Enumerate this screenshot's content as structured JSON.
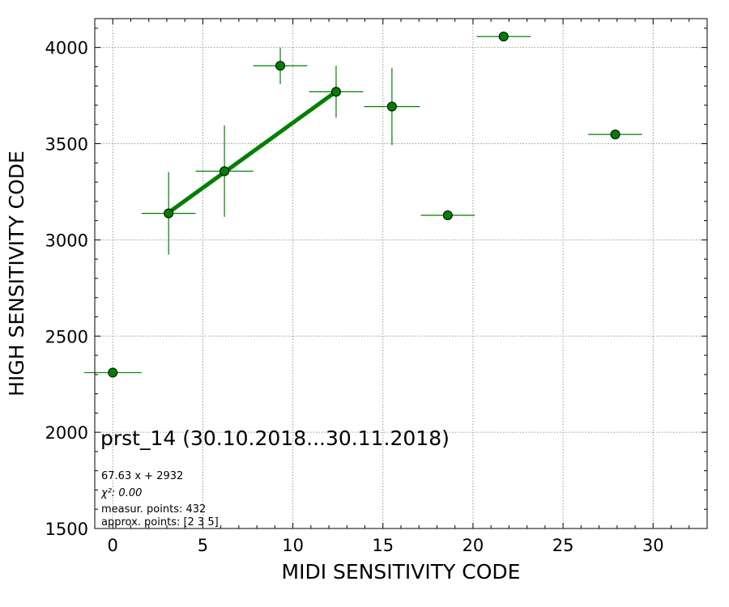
{
  "chart_data": {
    "type": "scatter",
    "title": "",
    "xlabel": "MIDI SENSITIVITY CODE",
    "ylabel": "HIGH SENSITIVITY CODE",
    "xlim": [
      -1,
      33
    ],
    "ylim": [
      1500,
      4150
    ],
    "grid": true,
    "x_ticks": [
      0,
      5,
      10,
      15,
      20,
      25,
      30
    ],
    "y_ticks": [
      1500,
      2000,
      2500,
      3000,
      3500,
      4000
    ],
    "x_tick_labels": [
      "0",
      "5",
      "10",
      "15",
      "20",
      "25",
      "30"
    ],
    "y_tick_labels": [
      "1500",
      "2000",
      "2500",
      "3000",
      "3500",
      "4000"
    ],
    "colors": {
      "marker": "#008000",
      "marker_edge": "#000000",
      "errorbar": "#008000",
      "fit": "#008000",
      "grid": "#999999"
    },
    "points": [
      {
        "x": 0.0,
        "y": 2310,
        "xerr": 1.6,
        "yerr": 0
      },
      {
        "x": 3.1,
        "y": 3138,
        "xerr": 1.5,
        "yerr": 215
      },
      {
        "x": 6.2,
        "y": 3357,
        "xerr": 1.6,
        "yerr": 237
      },
      {
        "x": 9.3,
        "y": 3905,
        "xerr": 1.5,
        "yerr": 95
      },
      {
        "x": 12.4,
        "y": 3770,
        "xerr": 1.5,
        "yerr": 135
      },
      {
        "x": 15.5,
        "y": 3693,
        "xerr": 1.55,
        "yerr": 200
      },
      {
        "x": 18.6,
        "y": 3128,
        "xerr": 1.5,
        "yerr": 0
      },
      {
        "x": 21.7,
        "y": 4057,
        "xerr": 1.5,
        "yerr": 18
      },
      {
        "x": 27.9,
        "y": 3548,
        "xerr": 1.5,
        "yerr": 0
      }
    ],
    "fit_line": {
      "x": [
        3.1,
        12.4
      ],
      "y": [
        3142,
        3771
      ]
    },
    "annotations": {
      "title": "prst_14 (30.10.2018...30.11.2018)",
      "equation": "67.63 x + 2932",
      "chi2": "χ²: 0.00",
      "measur_points": "measur. points: 432",
      "approx_points": "approx. points: [2 3 5]"
    }
  }
}
